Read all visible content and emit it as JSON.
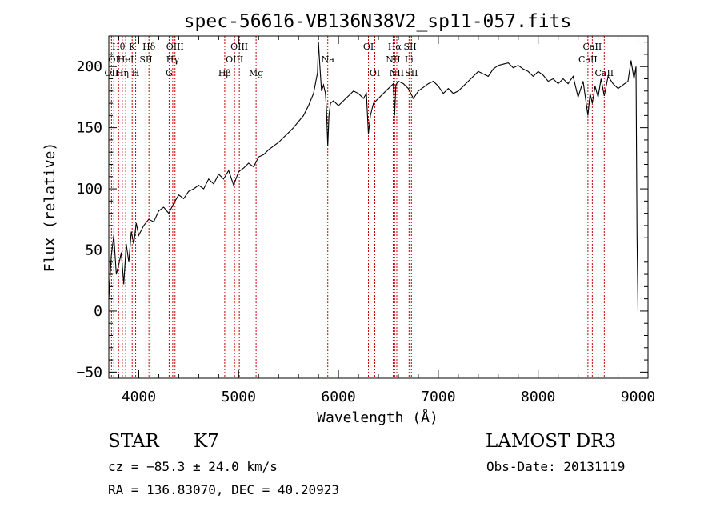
{
  "chart_data": {
    "type": "line",
    "title": "spec-56616-VB136N38V2_sp11-057.fits",
    "xlabel": "Wavelength (Å)",
    "ylabel": "Flux (relative)",
    "xlim": [
      3700,
      9100
    ],
    "ylim": [
      -55,
      225
    ],
    "x_ticks": [
      4000,
      5000,
      6000,
      7000,
      8000,
      9000
    ],
    "x_tick_labels": [
      "4000",
      "5000",
      "6000",
      "7000",
      "8000",
      "9000"
    ],
    "y_ticks": [
      -50,
      0,
      50,
      100,
      150,
      200
    ],
    "y_tick_labels": [
      "−50",
      "0",
      "50",
      "100",
      "150",
      "200"
    ],
    "grid": false,
    "series": [
      {
        "name": "spectrum",
        "color": "#000000",
        "x": [
          3700,
          3725,
          3750,
          3775,
          3800,
          3825,
          3850,
          3875,
          3900,
          3925,
          3950,
          3975,
          4000,
          4050,
          4100,
          4150,
          4200,
          4250,
          4300,
          4350,
          4400,
          4450,
          4500,
          4550,
          4600,
          4650,
          4700,
          4750,
          4800,
          4850,
          4900,
          4950,
          5000,
          5050,
          5100,
          5150,
          5200,
          5250,
          5300,
          5350,
          5400,
          5450,
          5500,
          5550,
          5600,
          5650,
          5700,
          5750,
          5790,
          5800,
          5810,
          5830,
          5850,
          5870,
          5880,
          5893,
          5905,
          5920,
          5950,
          6000,
          6050,
          6100,
          6150,
          6200,
          6250,
          6280,
          6300,
          6320,
          6350,
          6400,
          6450,
          6500,
          6550,
          6563,
          6575,
          6600,
          6650,
          6700,
          6750,
          6800,
          6850,
          6900,
          6950,
          7000,
          7050,
          7100,
          7150,
          7200,
          7250,
          7300,
          7350,
          7400,
          7450,
          7500,
          7550,
          7600,
          7650,
          7700,
          7750,
          7800,
          7850,
          7900,
          7950,
          8000,
          8050,
          8100,
          8150,
          8200,
          8250,
          8300,
          8350,
          8400,
          8450,
          8498,
          8520,
          8542,
          8570,
          8600,
          8630,
          8662,
          8700,
          8750,
          8800,
          8850,
          8900,
          8930,
          8960,
          8980,
          8990,
          9000
        ],
        "y": [
          10,
          45,
          62,
          30,
          38,
          48,
          22,
          55,
          40,
          65,
          55,
          72,
          62,
          70,
          75,
          73,
          82,
          85,
          80,
          88,
          95,
          92,
          98,
          100,
          103,
          100,
          108,
          104,
          112,
          108,
          115,
          103,
          114,
          117,
          121,
          118,
          126,
          128,
          132,
          135,
          138,
          142,
          146,
          150,
          155,
          160,
          168,
          178,
          195,
          220,
          205,
          180,
          185,
          178,
          165,
          135,
          160,
          170,
          172,
          168,
          172,
          176,
          180,
          178,
          174,
          178,
          145,
          160,
          170,
          174,
          178,
          182,
          186,
          160,
          185,
          188,
          186,
          182,
          174,
          180,
          183,
          186,
          188,
          184,
          178,
          182,
          178,
          180,
          184,
          188,
          192,
          196,
          194,
          192,
          198,
          201,
          202,
          203,
          199,
          201,
          198,
          196,
          192,
          196,
          193,
          188,
          190,
          186,
          190,
          186,
          192,
          175,
          188,
          160,
          178,
          170,
          184,
          175,
          190,
          176,
          192,
          186,
          182,
          185,
          188,
          205,
          190,
          200,
          60,
          0
        ]
      }
    ],
    "line_markers": [
      {
        "wavelength": 3727,
        "labels": [
          "OII"
        ],
        "rows": [
          3
        ]
      },
      {
        "wavelength": 3750,
        "labels": [
          "OI"
        ],
        "rows": [
          2
        ]
      },
      {
        "wavelength": 3798,
        "labels": [
          "Hθ"
        ],
        "rows": [
          1
        ]
      },
      {
        "wavelength": 3835,
        "labels": [
          "Hη"
        ],
        "rows": [
          3
        ]
      },
      {
        "wavelength": 3869,
        "labels": [
          "HeI"
        ],
        "rows": [
          2
        ]
      },
      {
        "wavelength": 3934,
        "labels": [
          "K"
        ],
        "rows": [
          1
        ]
      },
      {
        "wavelength": 3969,
        "labels": [
          "H"
        ],
        "rows": [
          3
        ]
      },
      {
        "wavelength": 4072,
        "labels": [
          "SII"
        ],
        "rows": [
          2
        ]
      },
      {
        "wavelength": 4102,
        "labels": [
          "Hδ"
        ],
        "rows": [
          1
        ]
      },
      {
        "wavelength": 4304,
        "labels": [
          "G"
        ],
        "rows": [
          3
        ]
      },
      {
        "wavelength": 4340,
        "labels": [
          "Hγ"
        ],
        "rows": [
          2
        ]
      },
      {
        "wavelength": 4363,
        "labels": [
          "OIII"
        ],
        "rows": [
          1
        ]
      },
      {
        "wavelength": 4861,
        "labels": [
          "Hβ"
        ],
        "rows": [
          3
        ]
      },
      {
        "wavelength": 4959,
        "labels": [
          "OIII"
        ],
        "rows": [
          2
        ]
      },
      {
        "wavelength": 5007,
        "labels": [
          "OIII"
        ],
        "rows": [
          1
        ]
      },
      {
        "wavelength": 5175,
        "labels": [
          "Mg"
        ],
        "rows": [
          3
        ]
      },
      {
        "wavelength": 5893,
        "labels": [
          "Na"
        ],
        "rows": [
          2
        ]
      },
      {
        "wavelength": 6300,
        "labels": [
          "OI"
        ],
        "rows": [
          1
        ]
      },
      {
        "wavelength": 6364,
        "labels": [
          "OI"
        ],
        "rows": [
          3
        ]
      },
      {
        "wavelength": 6548,
        "labels": [
          "NII"
        ],
        "rows": [
          2
        ]
      },
      {
        "wavelength": 6563,
        "labels": [
          "Hα"
        ],
        "rows": [
          1
        ]
      },
      {
        "wavelength": 6584,
        "labels": [
          "NII"
        ],
        "rows": [
          3
        ]
      },
      {
        "wavelength": 6707,
        "labels": [
          "Li"
        ],
        "rows": [
          2
        ]
      },
      {
        "wavelength": 6717,
        "labels": [
          "SII"
        ],
        "rows": [
          1
        ]
      },
      {
        "wavelength": 6731,
        "labels": [
          "SII"
        ],
        "rows": [
          3
        ]
      },
      {
        "wavelength": 8498,
        "labels": [
          "CaII"
        ],
        "rows": [
          2
        ]
      },
      {
        "wavelength": 8542,
        "labels": [
          "CaII"
        ],
        "rows": [
          1
        ]
      },
      {
        "wavelength": 8662,
        "labels": [
          "CaII"
        ],
        "rows": [
          3
        ]
      }
    ],
    "marker_color": "#cc0000"
  },
  "info": {
    "object_class": "STAR",
    "subclass": "K7",
    "survey": "LAMOST DR3",
    "redshift": "cz = −85.3 ± 24.0 km/s",
    "obs_date": "Obs-Date: 20131119",
    "coordinates": "RA = 136.83070, DEC =  40.20923"
  }
}
